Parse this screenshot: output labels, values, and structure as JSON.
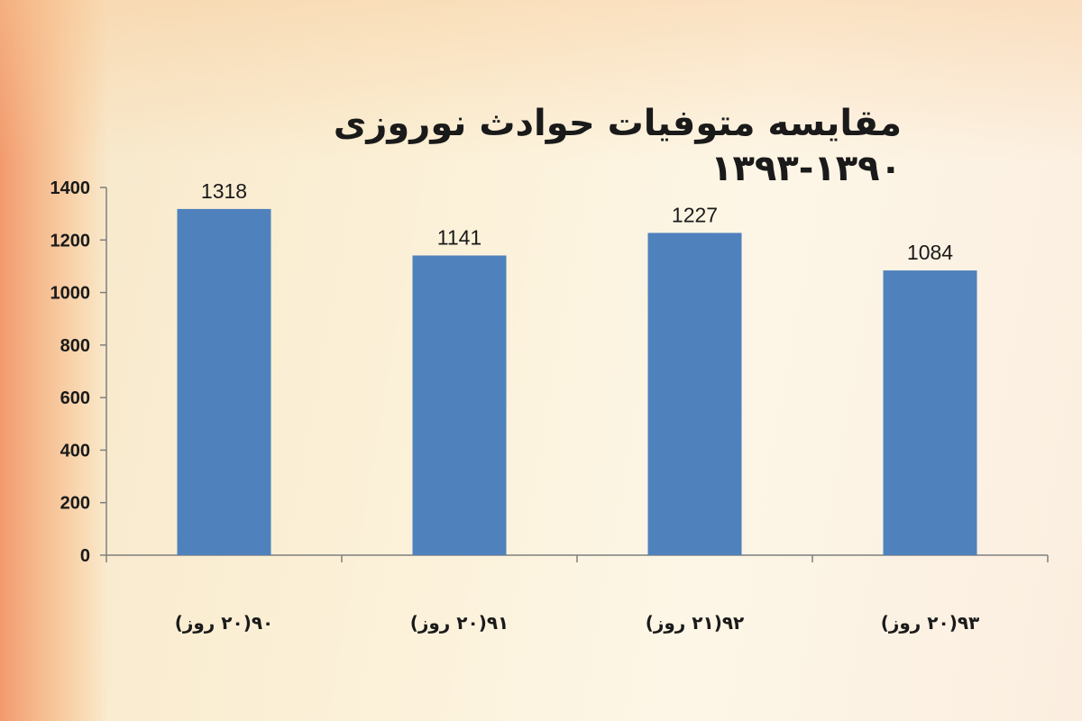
{
  "chart_data": {
    "type": "bar",
    "title": "مقایسه متوفیات حوادث نوروزی ۱۳۹۰-۱۳۹۳",
    "categories": [
      "۹۰(۲۰ روز)",
      "۹۱(۲۰ روز)",
      "۹۲(۲۱ روز)",
      "۹۳(۲۰ روز)"
    ],
    "values": [
      1318,
      1141,
      1227,
      1084
    ],
    "ylim": [
      0,
      1400
    ],
    "yticks": [
      0,
      200,
      400,
      600,
      800,
      1000,
      1200,
      1400
    ],
    "bar_color": "#4f81bd",
    "grid": false,
    "legend": "none",
    "xlabel": "",
    "ylabel": ""
  }
}
